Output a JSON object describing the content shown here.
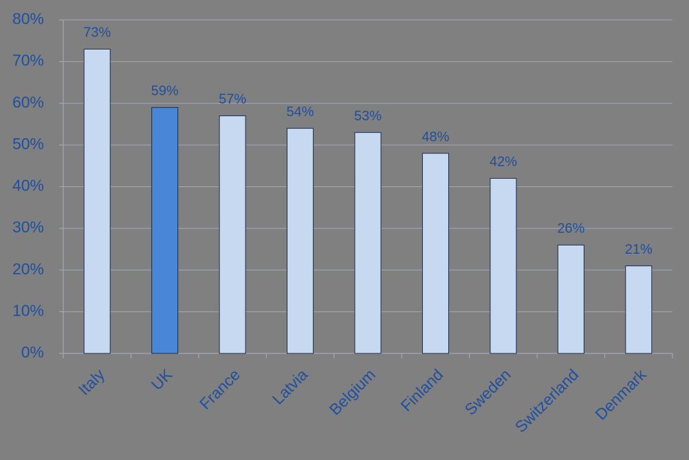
{
  "chart_data": {
    "type": "bar",
    "categories": [
      "Italy",
      "UK",
      "France",
      "Latvia",
      "Belgium",
      "Finland",
      "Sweden",
      "Switzerland",
      "Denmark"
    ],
    "values": [
      73,
      59,
      57,
      54,
      53,
      48,
      42,
      26,
      21
    ],
    "value_labels": [
      "73%",
      "59%",
      "57%",
      "54%",
      "53%",
      "48%",
      "42%",
      "26%",
      "21%"
    ],
    "colors": [
      "#c6d9f1",
      "#4a86d8",
      "#c6d9f1",
      "#c6d9f1",
      "#c6d9f1",
      "#c6d9f1",
      "#c6d9f1",
      "#c6d9f1",
      "#c6d9f1"
    ],
    "ylim": [
      0,
      80
    ],
    "yticks": [
      {
        "value": 0,
        "label": "0%"
      },
      {
        "value": 10,
        "label": "10%"
      },
      {
        "value": 20,
        "label": "20%"
      },
      {
        "value": 30,
        "label": "30%"
      },
      {
        "value": 40,
        "label": "40%"
      },
      {
        "value": 50,
        "label": "50%"
      },
      {
        "value": 60,
        "label": "60%"
      },
      {
        "value": 70,
        "label": "70%"
      },
      {
        "value": 80,
        "label": "80%"
      }
    ],
    "grid": true
  }
}
